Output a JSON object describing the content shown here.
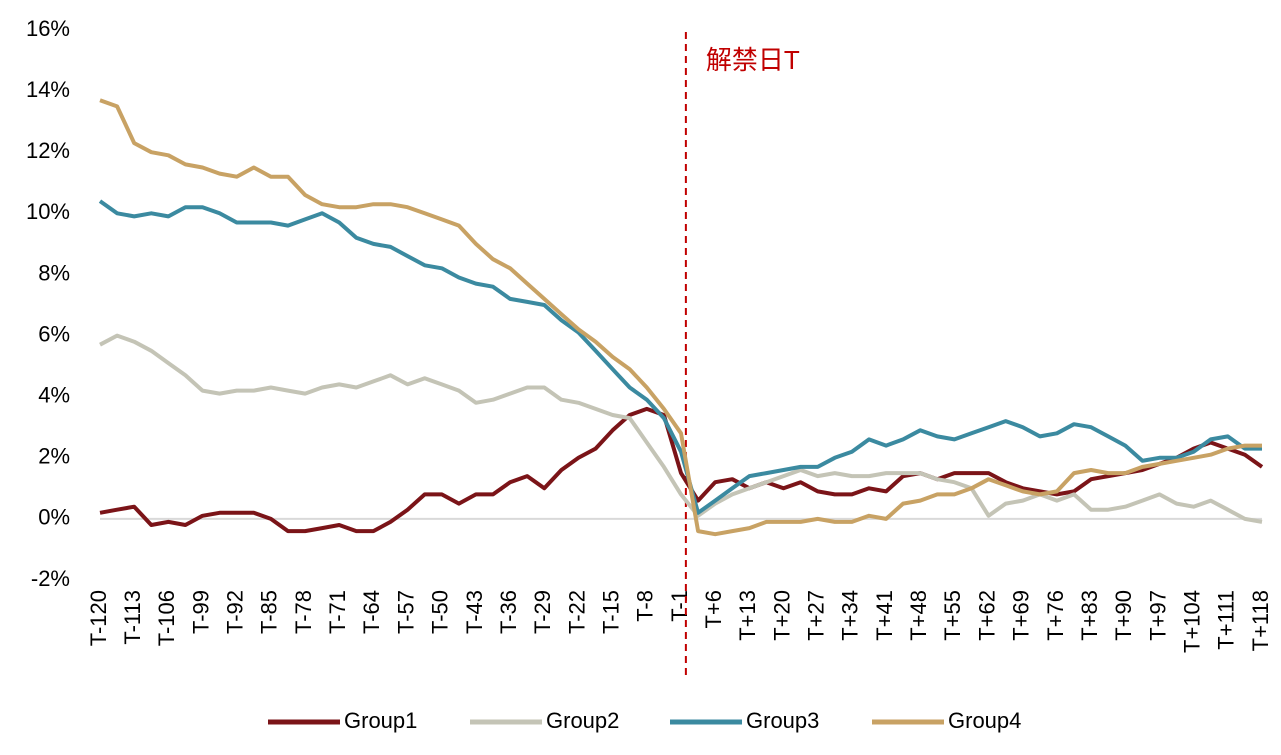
{
  "chart_data": {
    "type": "line",
    "categories": [
      "T-120",
      null,
      "T-113",
      null,
      "T-106",
      null,
      "T-99",
      null,
      "T-92",
      null,
      "T-85",
      null,
      "T-78",
      null,
      "T-71",
      null,
      "T-64",
      null,
      "T-57",
      null,
      "T-50",
      null,
      "T-43",
      null,
      "T-36",
      null,
      "T-29",
      null,
      "T-22",
      null,
      "T-15",
      null,
      "T-8",
      null,
      "T-1",
      null,
      "T+6",
      null,
      "T+13",
      null,
      "T+20",
      null,
      "T+27",
      null,
      "T+34",
      null,
      "T+41",
      null,
      "T+48",
      null,
      "T+55",
      null,
      "T+62",
      null,
      "T+69",
      null,
      "T+76",
      null,
      "T+83",
      null,
      "T+90",
      null,
      "T+97",
      null,
      "T+104",
      null,
      "T+111",
      null,
      "T+118"
    ],
    "series": [
      {
        "name": "Group1",
        "color": "#7b1418",
        "values": [
          0.2,
          0.3,
          0.4,
          -0.2,
          -0.1,
          -0.2,
          0.1,
          0.2,
          0.2,
          0.2,
          0.0,
          -0.4,
          -0.4,
          -0.3,
          -0.2,
          -0.4,
          -0.4,
          -0.1,
          0.3,
          0.8,
          0.8,
          0.5,
          0.8,
          0.8,
          1.2,
          1.4,
          1.0,
          1.6,
          2.0,
          2.3,
          2.9,
          3.4,
          3.6,
          3.4,
          1.5,
          0.6,
          1.2,
          1.3,
          1.0,
          1.2,
          1.0,
          1.2,
          0.9,
          0.8,
          0.8,
          1.0,
          0.9,
          1.4,
          1.5,
          1.3,
          1.5,
          1.5,
          1.5,
          1.2,
          1.0,
          0.9,
          0.8,
          0.9,
          1.3,
          1.4,
          1.5,
          1.6,
          1.8,
          2.0,
          2.3,
          2.5,
          2.3,
          2.1,
          1.7
        ]
      },
      {
        "name": "Group2",
        "color": "#c4c4b6",
        "values": [
          5.7,
          6.0,
          5.8,
          5.5,
          5.1,
          4.7,
          4.2,
          4.1,
          4.2,
          4.2,
          4.3,
          4.2,
          4.1,
          4.3,
          4.4,
          4.3,
          4.5,
          4.7,
          4.4,
          4.6,
          4.4,
          4.2,
          3.8,
          3.9,
          4.1,
          4.3,
          4.3,
          3.9,
          3.8,
          3.6,
          3.4,
          3.3,
          2.5,
          1.7,
          0.8,
          0.1,
          0.5,
          0.8,
          1.0,
          1.2,
          1.4,
          1.6,
          1.4,
          1.5,
          1.4,
          1.4,
          1.5,
          1.5,
          1.5,
          1.3,
          1.2,
          1.0,
          0.1,
          0.5,
          0.6,
          0.8,
          0.6,
          0.8,
          0.3,
          0.3,
          0.4,
          0.6,
          0.8,
          0.5,
          0.4,
          0.6,
          0.3,
          0.0,
          -0.1
        ]
      },
      {
        "name": "Group3",
        "color": "#3b8aa0",
        "values": [
          10.4,
          10.0,
          9.9,
          10.0,
          9.9,
          10.2,
          10.2,
          10.0,
          9.7,
          9.7,
          9.7,
          9.6,
          9.8,
          10.0,
          9.7,
          9.2,
          9.0,
          8.9,
          8.6,
          8.3,
          8.2,
          7.9,
          7.7,
          7.6,
          7.2,
          7.1,
          7.0,
          6.5,
          6.1,
          5.5,
          4.9,
          4.3,
          3.9,
          3.3,
          2.2,
          0.2,
          0.6,
          1.0,
          1.4,
          1.5,
          1.6,
          1.7,
          1.7,
          2.0,
          2.2,
          2.6,
          2.4,
          2.6,
          2.9,
          2.7,
          2.6,
          2.8,
          3.0,
          3.2,
          3.0,
          2.7,
          2.8,
          3.1,
          3.0,
          2.7,
          2.4,
          1.9,
          2.0,
          2.0,
          2.2,
          2.6,
          2.7,
          2.3,
          2.3
        ]
      },
      {
        "name": "Group4",
        "color": "#c8a264",
        "values": [
          13.7,
          13.5,
          12.3,
          12.0,
          11.9,
          11.6,
          11.5,
          11.3,
          11.2,
          11.5,
          11.2,
          11.2,
          10.6,
          10.3,
          10.2,
          10.2,
          10.3,
          10.3,
          10.2,
          10.0,
          9.8,
          9.6,
          9.0,
          8.5,
          8.2,
          7.7,
          7.2,
          6.7,
          6.2,
          5.8,
          5.3,
          4.9,
          4.3,
          3.6,
          2.8,
          -0.4,
          -0.5,
          -0.4,
          -0.3,
          -0.1,
          -0.1,
          -0.1,
          0.0,
          -0.1,
          -0.1,
          0.1,
          0.0,
          0.5,
          0.6,
          0.8,
          0.8,
          1.0,
          1.3,
          1.1,
          0.9,
          0.8,
          0.9,
          1.5,
          1.6,
          1.5,
          1.5,
          1.7,
          1.8,
          1.9,
          2.0,
          2.1,
          2.3,
          2.4,
          2.4
        ]
      }
    ],
    "ylim": [
      -2,
      16
    ],
    "yticks": [
      {
        "value": -2,
        "label": "-2%"
      },
      {
        "value": 0,
        "label": "0%"
      },
      {
        "value": 2,
        "label": "2%"
      },
      {
        "value": 4,
        "label": "4%"
      },
      {
        "value": 6,
        "label": "6%"
      },
      {
        "value": 8,
        "label": "8%"
      },
      {
        "value": 10,
        "label": "10%"
      },
      {
        "value": 12,
        "label": "12%"
      },
      {
        "value": 14,
        "label": "14%"
      },
      {
        "value": 16,
        "label": "16%"
      }
    ],
    "grid": false,
    "reference_line": 0,
    "annotation": {
      "text": "解禁日T",
      "color": "#c00000"
    },
    "legend": "bottom"
  }
}
